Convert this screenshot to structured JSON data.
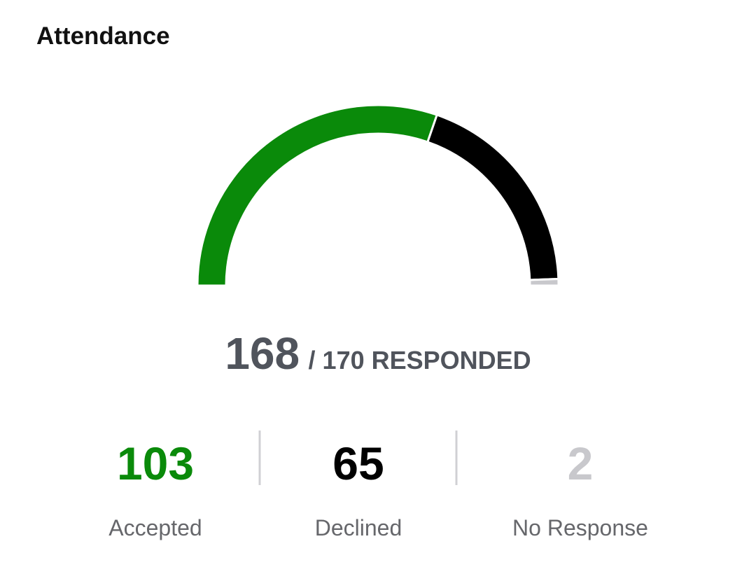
{
  "header": {
    "title": "Attendance"
  },
  "summary": {
    "responded": 168,
    "total_text": "/ 170 RESPONDED"
  },
  "stats": [
    {
      "value": 103,
      "label": "Accepted",
      "color": "#0a8a0a"
    },
    {
      "value": 65,
      "label": "Declined",
      "color": "#000000"
    },
    {
      "value": 2,
      "label": "No Response",
      "color": "#c8c8cc"
    }
  ]
}
